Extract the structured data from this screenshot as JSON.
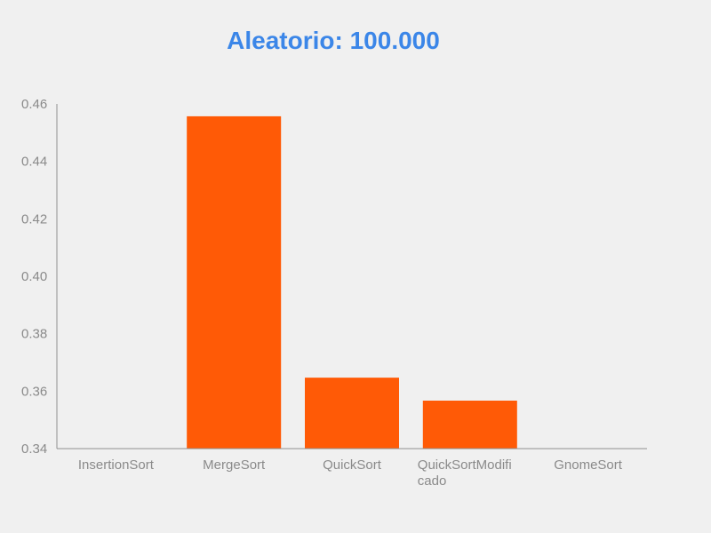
{
  "chart_data": {
    "type": "bar",
    "title": "Aleatorio: 100.000",
    "xlabel": "",
    "ylabel": "",
    "categories": [
      "InsertionSort",
      "MergeSort",
      "QuickSort",
      "QuickSortModificado",
      "GnomeSort"
    ],
    "category_label_lines": [
      [
        "InsertionSort"
      ],
      [
        "MergeSort"
      ],
      [
        "QuickSort"
      ],
      [
        "QuickSortModifi",
        "cado"
      ],
      [
        "GnomeSort"
      ]
    ],
    "values": [
      null,
      0.4557,
      0.3647,
      0.3567,
      null
    ],
    "ylim": [
      0.34,
      0.46
    ],
    "yticks": [
      "0.46",
      "0.44",
      "0.42",
      "0.40",
      "0.38",
      "0.36",
      "0.34"
    ],
    "ytick_values": [
      0.46,
      0.44,
      0.42,
      0.4,
      0.38,
      0.36,
      0.34
    ],
    "bar_color": "#ff5a06",
    "title_color": "#3b86e8",
    "grid": false,
    "legend": "none"
  }
}
